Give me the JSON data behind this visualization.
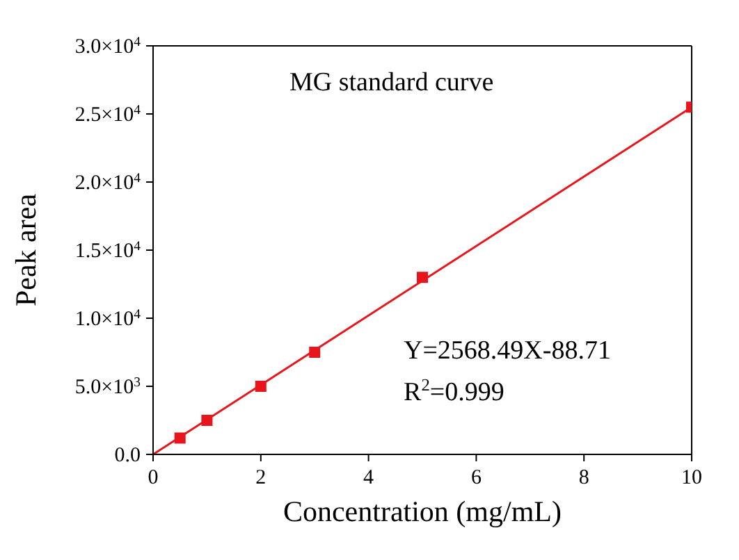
{
  "chart_data": {
    "type": "scatter",
    "title": "MG standard curve",
    "xlabel": "Concentration (mg/mL)",
    "ylabel": "Peak area",
    "xlim": [
      0,
      10
    ],
    "xticks": [
      0,
      2,
      4,
      6,
      8,
      10
    ],
    "ylim": [
      0,
      30000
    ],
    "yticks": [
      {
        "value": 0,
        "label": "0.0"
      },
      {
        "value": 5000,
        "label": "5.0×10$^{3}$"
      },
      {
        "value": 10000,
        "label": "1.0×10$^{4}$"
      },
      {
        "value": 15000,
        "label": "1.5×10$^{4}$"
      },
      {
        "value": 20000,
        "label": "2.0×10$^{4}$"
      },
      {
        "value": 25000,
        "label": "2.5×10$^{4}$"
      },
      {
        "value": 30000,
        "label": "3.0×10$^{4}$"
      }
    ],
    "series": [
      {
        "color": "#e8161c",
        "marker": "square",
        "x": [
          0.5,
          1,
          2,
          3,
          5,
          10
        ],
        "values": [
          1200,
          2500,
          5000,
          7500,
          13000,
          25500
        ]
      },
      {
        "type": "line",
        "color": "#e8161c",
        "marker": "none",
        "x": [
          0,
          10
        ],
        "values": [
          0,
          25500
        ]
      }
    ],
    "annotations": [
      "Y=2568.49X-88.71",
      "R$^{2}$=0.999"
    ]
  }
}
